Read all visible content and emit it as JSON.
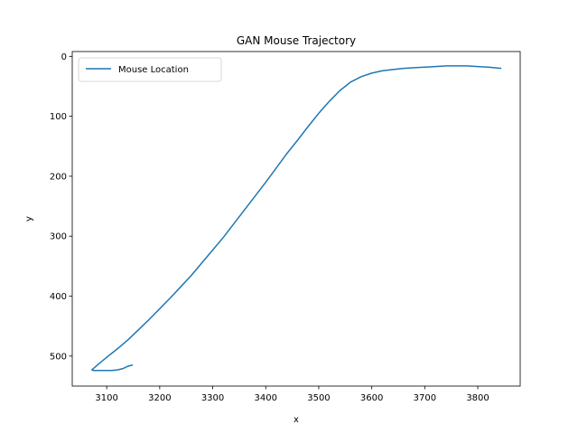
{
  "chart_data": {
    "type": "line",
    "title": "GAN Mouse Trajectory",
    "xlabel": "x",
    "ylabel": "y",
    "xlim": [
      3035,
      3880
    ],
    "ylim": [
      550,
      -8
    ],
    "y_inverted": true,
    "xticks": [
      3100,
      3200,
      3300,
      3400,
      3500,
      3600,
      3700,
      3800
    ],
    "yticks": [
      0,
      100,
      200,
      300,
      400,
      500
    ],
    "grid": false,
    "legend_position": "upper-left",
    "color": "#1f77b4",
    "series": [
      {
        "name": "Mouse Location",
        "x": [
          3148,
          3140,
          3130,
          3120,
          3110,
          3090,
          3075,
          3072,
          3085,
          3100,
          3120,
          3140,
          3160,
          3180,
          3200,
          3220,
          3240,
          3260,
          3280,
          3300,
          3320,
          3340,
          3360,
          3380,
          3400,
          3420,
          3440,
          3460,
          3480,
          3500,
          3520,
          3540,
          3560,
          3580,
          3600,
          3620,
          3640,
          3660,
          3680,
          3700,
          3720,
          3740,
          3760,
          3780,
          3800,
          3820,
          3843
        ],
        "y": [
          515,
          517,
          521,
          523,
          524,
          524,
          524,
          523,
          513,
          502,
          488,
          473,
          456,
          439,
          421,
          403,
          384,
          365,
          344,
          323,
          302,
          279,
          256,
          233,
          210,
          186,
          162,
          140,
          117,
          95,
          75,
          57,
          43,
          34,
          28,
          24,
          22,
          20,
          19,
          18,
          17,
          16,
          16,
          16,
          17,
          18,
          20
        ]
      }
    ]
  }
}
